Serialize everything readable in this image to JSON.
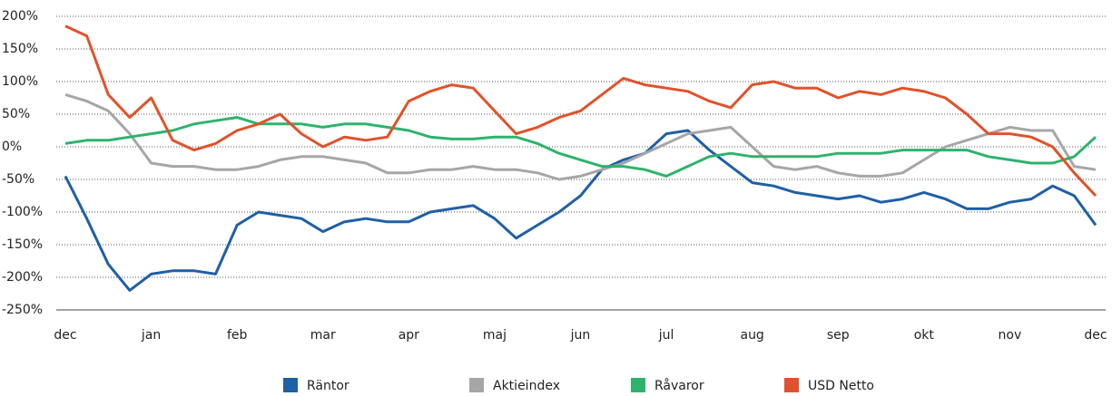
{
  "chart_data": {
    "type": "line",
    "categories": [
      "dec",
      null,
      null,
      null,
      "jan",
      null,
      null,
      null,
      "feb",
      null,
      null,
      null,
      "mar",
      null,
      null,
      null,
      "apr",
      null,
      null,
      null,
      "maj",
      null,
      null,
      null,
      "jun",
      null,
      null,
      null,
      "jul",
      null,
      null,
      null,
      "aug",
      null,
      null,
      null,
      "sep",
      null,
      null,
      null,
      "okt",
      null,
      null,
      null,
      "nov",
      null,
      null,
      null,
      "dec"
    ],
    "series": [
      {
        "name": "Räntor",
        "color": "#1f5fa6",
        "values": [
          -45,
          -110,
          -180,
          -220,
          -195,
          -190,
          -190,
          -195,
          -120,
          -100,
          -105,
          -110,
          -130,
          -115,
          -110,
          -115,
          -115,
          -100,
          -95,
          -90,
          -110,
          -140,
          -120,
          -100,
          -75,
          -35,
          -20,
          -10,
          20,
          25,
          -5,
          -30,
          -55,
          -60,
          -70,
          -75,
          -80,
          -75,
          -85,
          -80,
          -70,
          -80,
          -95,
          -95,
          -85,
          -80,
          -60,
          -75,
          -120
        ]
      },
      {
        "name": "Aktieindex",
        "color": "#a6a6a6",
        "values": [
          80,
          70,
          55,
          20,
          -25,
          -30,
          -30,
          -35,
          -35,
          -30,
          -20,
          -15,
          -15,
          -20,
          -25,
          -40,
          -40,
          -35,
          -35,
          -30,
          -35,
          -35,
          -40,
          -50,
          -45,
          -35,
          -25,
          -10,
          5,
          20,
          25,
          30,
          0,
          -30,
          -35,
          -30,
          -40,
          -45,
          -45,
          -40,
          -20,
          0,
          10,
          20,
          30,
          25,
          25,
          -30,
          -35
        ]
      },
      {
        "name": "Råvaror",
        "color": "#2eb36b",
        "values": [
          5,
          10,
          10,
          15,
          20,
          25,
          35,
          40,
          45,
          35,
          35,
          35,
          30,
          35,
          35,
          30,
          25,
          15,
          12,
          12,
          15,
          15,
          5,
          -10,
          -20,
          -30,
          -30,
          -35,
          -45,
          -30,
          -15,
          -10,
          -15,
          -15,
          -15,
          -15,
          -10,
          -10,
          -10,
          -5,
          -5,
          -5,
          -5,
          -15,
          -20,
          -25,
          -25,
          -15,
          15
        ]
      },
      {
        "name": "USD Netto",
        "color": "#e0522b",
        "values": [
          185,
          170,
          80,
          45,
          75,
          10,
          -5,
          5,
          25,
          35,
          50,
          20,
          0,
          15,
          10,
          15,
          70,
          85,
          95,
          90,
          55,
          20,
          30,
          45,
          55,
          80,
          105,
          95,
          90,
          85,
          70,
          60,
          95,
          100,
          90,
          90,
          75,
          85,
          80,
          90,
          85,
          75,
          50,
          20,
          20,
          15,
          0,
          -40,
          -75
        ]
      }
    ],
    "ylim": [
      -250,
      200
    ],
    "yticks": [
      {
        "value": -250,
        "label": "-250%"
      },
      {
        "value": -200,
        "label": "-200%"
      },
      {
        "value": -150,
        "label": "-150%"
      },
      {
        "value": -100,
        "label": "-100%"
      },
      {
        "value": -50,
        "label": "-50%"
      },
      {
        "value": 0,
        "label": "0%"
      },
      {
        "value": 50,
        "label": "50%"
      },
      {
        "value": 100,
        "label": "100%"
      },
      {
        "value": 150,
        "label": "150%"
      },
      {
        "value": 200,
        "label": "200%"
      }
    ],
    "grid": true
  }
}
